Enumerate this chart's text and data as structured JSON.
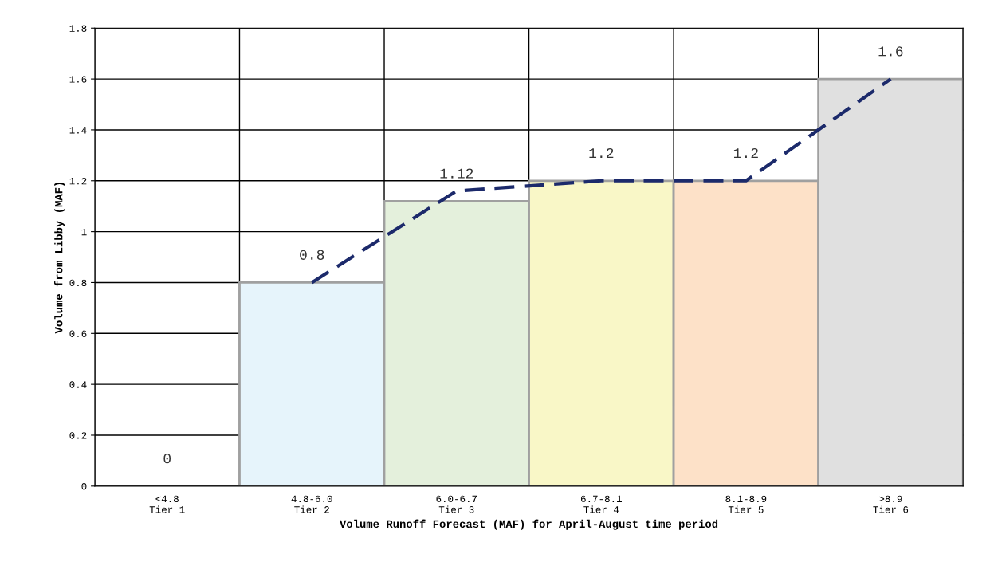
{
  "chart_data": {
    "type": "bar",
    "xlabel": "Volume Runoff Forecast (MAF) for April-August time period",
    "ylabel": "Volume from Libby (MAF)",
    "categories": [
      "<4.8\nTier 1",
      "4.8-6.0\nTier 2",
      "6.0-6.7\nTier 3",
      "6.7-8.1\nTier 4",
      "8.1-8.9\nTier 5",
      ">8.9\nTier 6"
    ],
    "series": [
      {
        "values": [
          0,
          0.8,
          1.12,
          1.2,
          1.2,
          1.6
        ],
        "colors": [
          "#ffffff",
          "#e6f4fb",
          "#e4f0dc",
          "#f9f7c7",
          "#fde1c8",
          "#e0e0e0"
        ],
        "data_labels": true
      },
      {
        "type": "line",
        "color": "#1c2a6b",
        "line_style": "dashed",
        "marker": "none",
        "values": [
          null,
          0.8,
          1.16,
          1.2,
          1.2,
          1.6
        ]
      }
    ],
    "ylim": [
      0,
      1.8
    ],
    "yticks": [
      {
        "value": 0,
        "label": "0"
      },
      0.2,
      0.4,
      0.6,
      0.8,
      {
        "value": 1,
        "label": "1"
      },
      1.2,
      1.4,
      1.6,
      1.8
    ],
    "grid": true
  }
}
